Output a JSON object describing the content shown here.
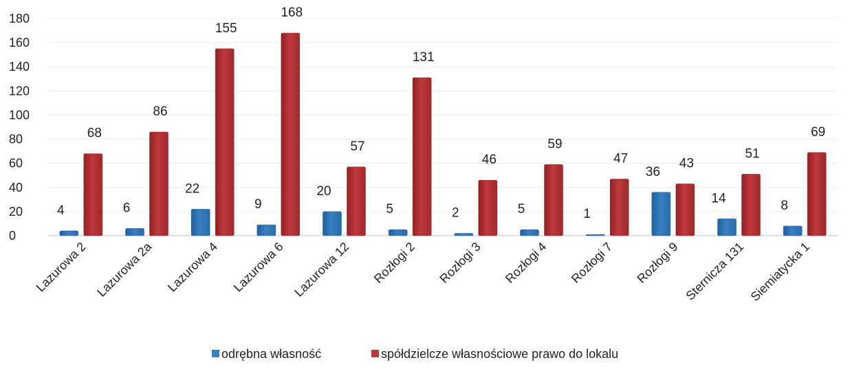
{
  "chart_data": {
    "type": "bar",
    "title": "",
    "xlabel": "",
    "ylabel": "",
    "ylim": [
      0,
      180
    ],
    "yticks": [
      0,
      20,
      40,
      60,
      80,
      100,
      120,
      140,
      160,
      180
    ],
    "grid": true,
    "legend_position": "bottom",
    "categories": [
      "Lazurowa 2",
      "Lazurowa 2a",
      "Lazurowa 4",
      "Lazurowa 6",
      "Lazurowa 12",
      "Rozłogi 2",
      "Rozłogi 3",
      "Rozłogi 4",
      "Rozłogi 7",
      "Rozłogi 9",
      "Sternicza 131",
      "Siemiatycka 1"
    ],
    "series": [
      {
        "name": "odrębna własność",
        "color": "#3a7fc0",
        "values": [
          4,
          6,
          22,
          9,
          20,
          5,
          2,
          5,
          1,
          36,
          14,
          8
        ]
      },
      {
        "name": "spółdzielcze własnościowe prawo do lokalu",
        "color": "#c0393b",
        "values": [
          68,
          86,
          155,
          168,
          57,
          131,
          46,
          59,
          47,
          43,
          51,
          69
        ]
      }
    ]
  }
}
